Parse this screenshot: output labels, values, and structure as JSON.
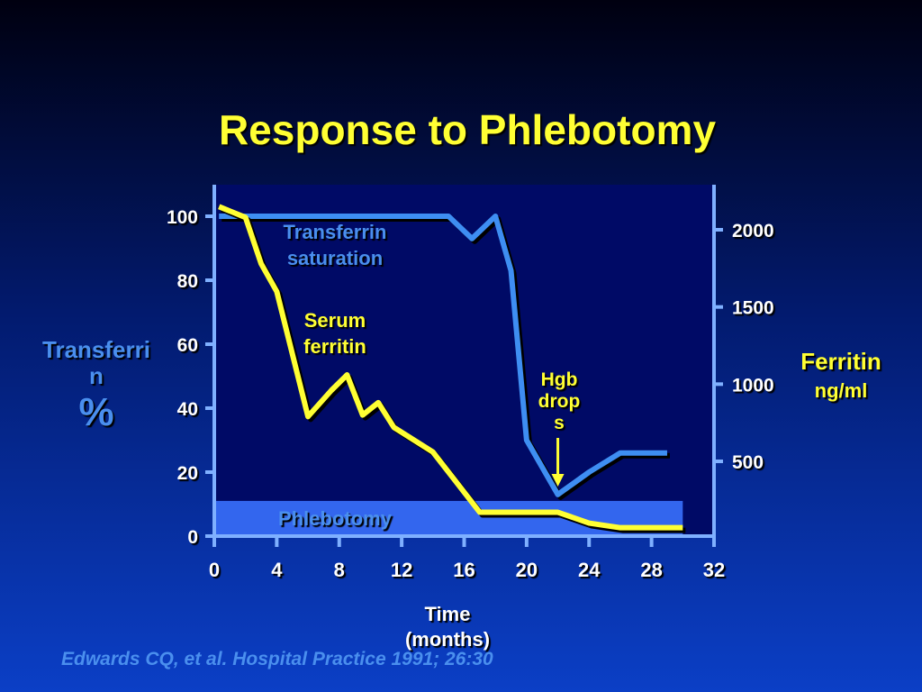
{
  "slide": {
    "title": "Response to Phlebotomy",
    "citation": "Edwards CQ, et al. Hospital Practice 1991; 26:30"
  },
  "colors": {
    "title": "#ffff33",
    "axis": "#7fb0ff",
    "plot_bg": "#000a66",
    "transferrin_line": "#3e8ef2",
    "ferritin_line": "#ffff33",
    "phlebotomy_band": "#3366ee",
    "label_blue": "#4a8fee",
    "text": "#ffffff"
  },
  "chart_data": {
    "type": "line",
    "title": "Response to Phlebotomy",
    "xlabel": "Time (months)",
    "ylabel_left": "Transferrin %",
    "ylabel_right": "Ferritin ng/ml",
    "xlim": [
      0,
      32
    ],
    "ylim_left": [
      0,
      110
    ],
    "ylim_right": [
      0,
      2250
    ],
    "xticks": [
      0,
      4,
      8,
      12,
      16,
      20,
      24,
      28,
      32
    ],
    "yticks_left": [
      0,
      20,
      40,
      60,
      80,
      100
    ],
    "yticks_right": [
      500,
      1000,
      1500,
      2000
    ],
    "series": [
      {
        "name": "Transferrin saturation",
        "axis": "left",
        "x": [
          0.3,
          15,
          16.5,
          18,
          19,
          20,
          22,
          24,
          26,
          29
        ],
        "y": [
          100,
          100,
          93,
          100,
          83,
          30,
          13,
          20,
          26,
          26
        ]
      },
      {
        "name": "Serum ferritin",
        "axis": "right",
        "x": [
          0.3,
          2,
          3,
          4,
          6,
          7.5,
          8.5,
          9.5,
          10.5,
          11.5,
          14,
          17,
          22,
          24,
          26,
          30
        ],
        "y": [
          2150,
          2080,
          1780,
          1600,
          790,
          960,
          1060,
          800,
          880,
          720,
          560,
          170,
          170,
          100,
          70,
          70
        ]
      }
    ],
    "phlebotomy_band": {
      "label": "Phlebotomy",
      "x_range": [
        0,
        30
      ],
      "y_top_left_units": 11
    },
    "annotations": {
      "transferrin_label": [
        "Transferrin",
        "saturation"
      ],
      "ferritin_label": [
        "Serum",
        "ferritin"
      ],
      "hgb_label": [
        "Hgb",
        "drop",
        "s"
      ],
      "hgb_arrow_x": 22
    },
    "left_axis_title": [
      "Transferri",
      "n",
      "%"
    ],
    "right_axis_title": [
      "Ferritin",
      "ng/ml"
    ],
    "x_axis_title": [
      "Time",
      "(months)"
    ]
  }
}
